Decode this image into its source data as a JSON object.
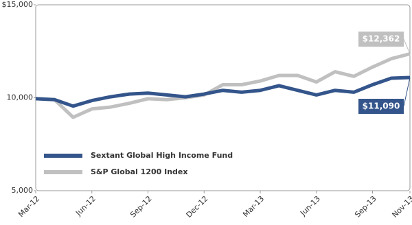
{
  "chart_data": {
    "type": "line",
    "categories": [
      "Mar-12",
      null,
      null,
      "Jun-12",
      null,
      null,
      "Sep-12",
      null,
      null,
      "Dec-12",
      null,
      null,
      "Mar-13",
      null,
      null,
      "Jun-13",
      null,
      null,
      "Sep-13",
      null,
      "Nov-13"
    ],
    "series": [
      {
        "name": "Sextant Global High Income Fund",
        "color": "#34558b",
        "values": [
          9950,
          9900,
          9550,
          9850,
          10050,
          10200,
          10250,
          10150,
          10050,
          10200,
          10400,
          10300,
          10400,
          10650,
          10400,
          10150,
          10400,
          10300,
          10700,
          11050,
          11090
        ],
        "value_labels": [
          null,
          null,
          null,
          null,
          null,
          null,
          null,
          null,
          null,
          null,
          null,
          null,
          null,
          null,
          null,
          null,
          null,
          null,
          null,
          null,
          "$11,090"
        ]
      },
      {
        "name": "S&P Global 1200 Index",
        "color": "#c0c0c0",
        "values": [
          9950,
          9900,
          8950,
          9400,
          9500,
          9700,
          9950,
          9900,
          10000,
          10150,
          10700,
          10700,
          10900,
          11200,
          11200,
          10850,
          11400,
          11150,
          11650,
          12100,
          12362
        ],
        "value_labels": [
          null,
          null,
          null,
          null,
          null,
          null,
          null,
          null,
          null,
          null,
          null,
          null,
          null,
          null,
          null,
          null,
          null,
          null,
          null,
          null,
          "$12,362"
        ]
      }
    ],
    "ylim": [
      5000,
      15000
    ],
    "yticks": [
      {
        "value": 5000,
        "label": "5,000"
      },
      {
        "value": 10000,
        "label": "10,000"
      },
      {
        "value": 15000,
        "label": "$15,000"
      }
    ],
    "grid": false,
    "legend": "lower left"
  }
}
